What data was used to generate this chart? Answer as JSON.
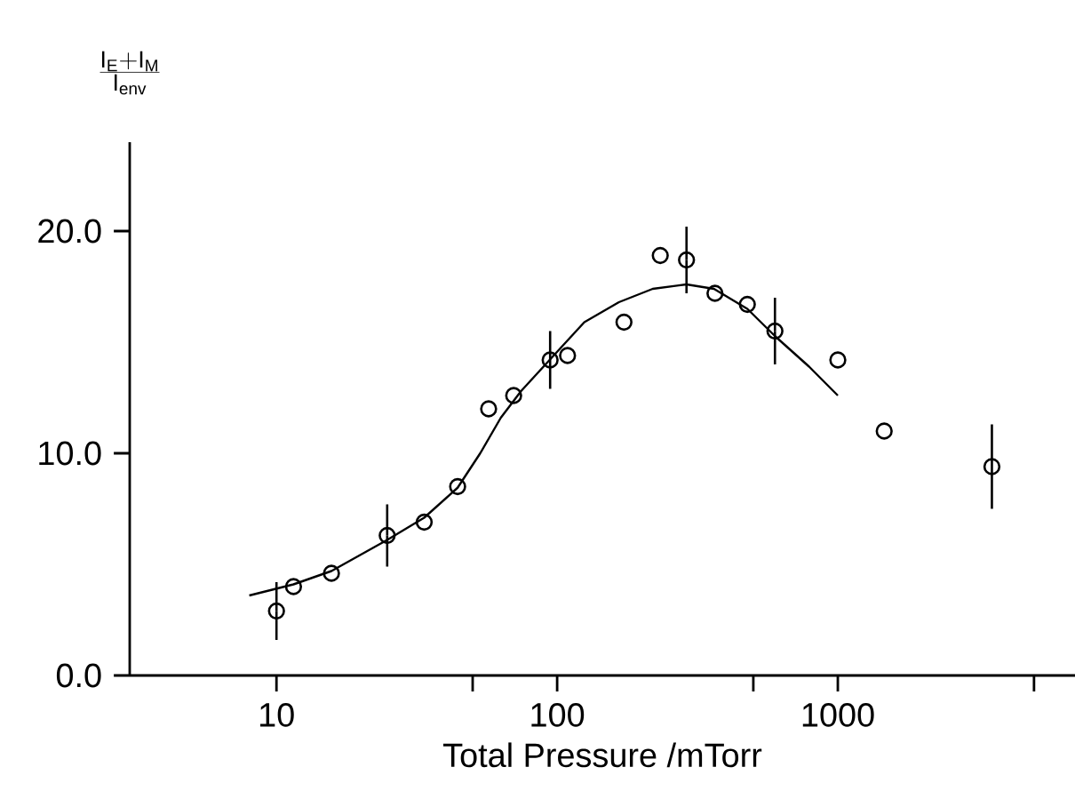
{
  "chart_data": {
    "type": "scatter",
    "xlabel": "Total Pressure /mTorr",
    "ylabel": "\\frac{\\mathrm{I_E + I_M}}{\\mathrm{I_{env}}}",
    "log": "x",
    "xlim": [
      3,
      7000
    ],
    "ylim": [
      0,
      24
    ],
    "xticks": [
      10,
      {
        "value": 50,
        "label": null
      },
      100,
      {
        "value": 500,
        "label": null
      },
      1000,
      {
        "value": 5000,
        "label": null
      }
    ],
    "yticks": [
      {
        "value": 0,
        "label": "0.0"
      },
      {
        "value": 10,
        "label": "10.0"
      },
      {
        "value": 20,
        "label": "20.0"
      }
    ],
    "marker": "circle",
    "series": [
      {
        "color": "#000000",
        "x": [
          10,
          11.5,
          15.7,
          24.8,
          33.6,
          44.2,
          57,
          70,
          94.4,
          108.9,
          173,
          233,
          289,
          365,
          476,
          597,
          1000,
          1463,
          3540
        ],
        "values": [
          2.9,
          4.0,
          4.6,
          6.3,
          6.9,
          8.5,
          12.0,
          12.6,
          14.2,
          14.4,
          15.9,
          18.9,
          18.7,
          17.2,
          16.7,
          15.5,
          14.2,
          11.0,
          9.4
        ],
        "errors": [
          1.3,
          null,
          null,
          1.4,
          null,
          null,
          null,
          null,
          1.3,
          null,
          null,
          null,
          1.5,
          null,
          null,
          1.5,
          null,
          null,
          1.9
        ]
      },
      {
        "type": "line",
        "color": "#000000",
        "marker": "none",
        "line_style": "solid",
        "x": [
          8,
          11.5,
          15.7,
          24.8,
          33.6,
          44.2,
          53.2,
          63,
          74.4,
          94,
          125,
          166,
          219,
          289,
          362,
          476,
          600,
          790,
          1000
        ],
        "values": [
          3.6,
          4.1,
          4.7,
          6.1,
          7.1,
          8.45,
          10.0,
          11.6,
          12.8,
          14.2,
          15.9,
          16.8,
          17.4,
          17.6,
          17.4,
          16.5,
          15.25,
          13.9,
          12.6
        ]
      }
    ]
  }
}
